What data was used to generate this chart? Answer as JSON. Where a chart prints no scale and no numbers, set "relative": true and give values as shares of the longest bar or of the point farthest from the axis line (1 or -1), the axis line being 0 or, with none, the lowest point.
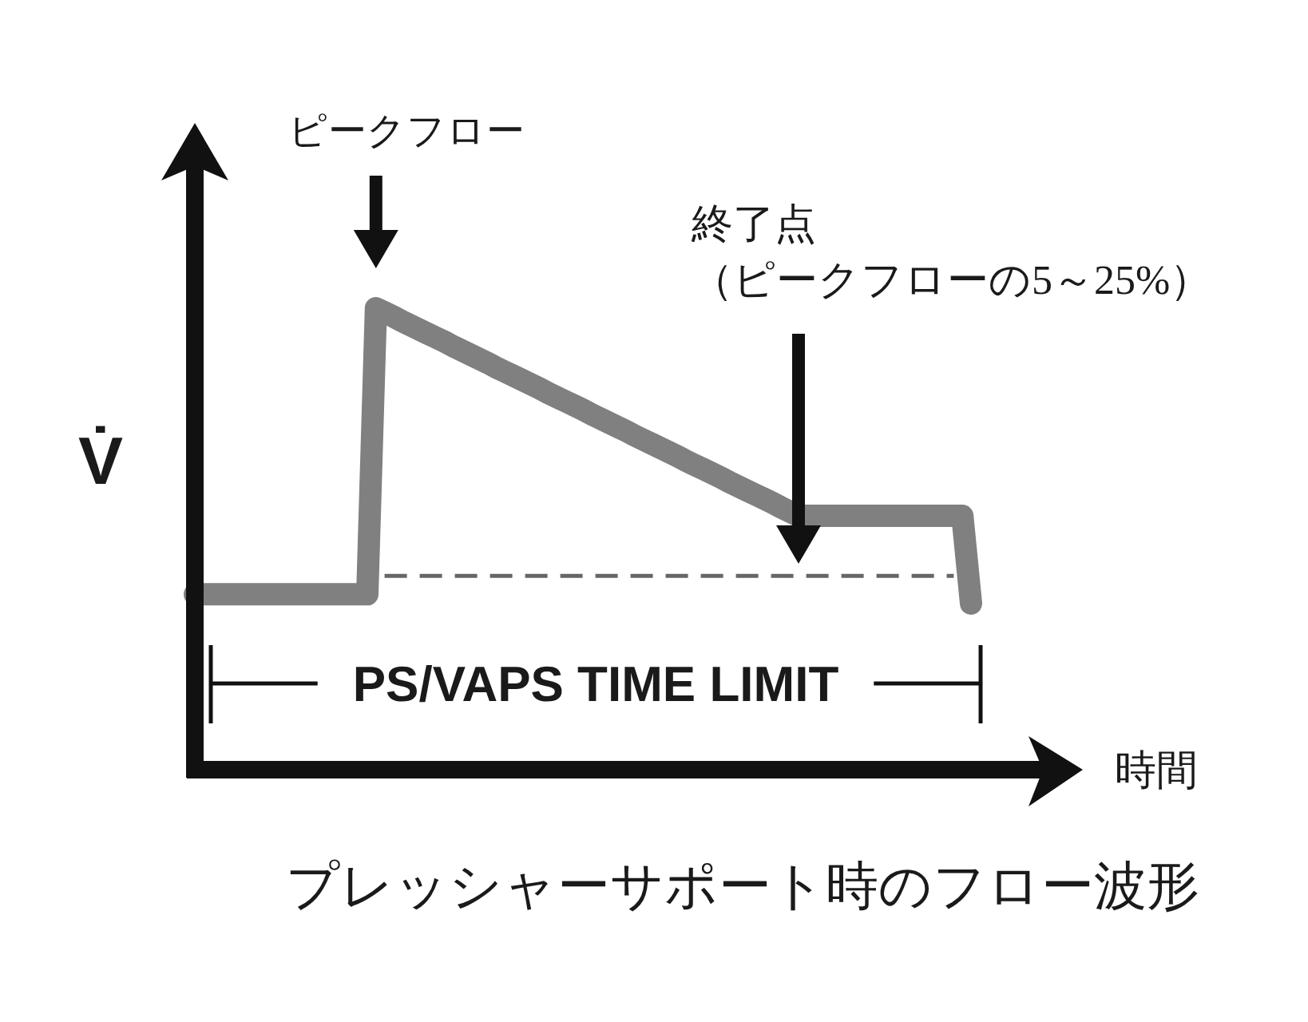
{
  "chart_data": {
    "type": "line",
    "title": "プレッシャーサポート時のフロー波形",
    "xlabel": "時間",
    "ylabel": "V̇",
    "relative": true,
    "categories": [
      null,
      null,
      null,
      null,
      null,
      null,
      null,
      null,
      null,
      null,
      null,
      null,
      null,
      null,
      null,
      null,
      null,
      null,
      null,
      null,
      null,
      null,
      null,
      null,
      null,
      null,
      null,
      null,
      null,
      null,
      null,
      null,
      null,
      null,
      null,
      null,
      null,
      null,
      null,
      null,
      null,
      null,
      null,
      null,
      null,
      null,
      null,
      null,
      null,
      null,
      null,
      null,
      null,
      null,
      null,
      null,
      null,
      null,
      null,
      null,
      null,
      null,
      null,
      null,
      null,
      null,
      null,
      null,
      null,
      null,
      null,
      null,
      null,
      null,
      null,
      null,
      null,
      null,
      null,
      null,
      null,
      null,
      null,
      null,
      null,
      null,
      null,
      null,
      null,
      null,
      null
    ],
    "series": [
      {
        "color": "#808080",
        "values": [
          0.38,
          0.38,
          0.38,
          0.38,
          0.38,
          0.38,
          0.38,
          0.38,
          0.38,
          0.38,
          0.38,
          0.38,
          0.38,
          0.38,
          0.38,
          0.38,
          0.38,
          0.38,
          0.38,
          0.38,
          0.38,
          1.0,
          0.991,
          0.982,
          0.972,
          0.963,
          0.954,
          0.945,
          0.936,
          0.927,
          0.917,
          0.908,
          0.899,
          0.89,
          0.881,
          0.871,
          0.862,
          0.853,
          0.844,
          0.835,
          0.826,
          0.816,
          0.807,
          0.798,
          0.789,
          0.78,
          0.77,
          0.761,
          0.752,
          0.743,
          0.734,
          0.724,
          0.715,
          0.706,
          0.697,
          0.688,
          0.679,
          0.669,
          0.66,
          0.651,
          0.642,
          0.633,
          0.623,
          0.614,
          0.605,
          0.596,
          0.587,
          0.578,
          0.568,
          0.559,
          0.55,
          0.55,
          0.55,
          0.55,
          0.55,
          0.55,
          0.55,
          0.55,
          0.55,
          0.55,
          0.55,
          0.55,
          0.55,
          0.55,
          0.55,
          0.55,
          0.55,
          0.55,
          0.55,
          0.55,
          0.36
        ]
      },
      {
        "color": "#666666",
        "line_style": "dashed",
        "values": [
          null,
          null,
          null,
          null,
          null,
          null,
          null,
          null,
          null,
          null,
          null,
          null,
          null,
          null,
          null,
          null,
          null,
          null,
          null,
          null,
          null,
          null,
          0.42,
          0.42,
          0.42,
          0.42,
          0.42,
          0.42,
          0.42,
          0.42,
          0.42,
          0.42,
          0.42,
          0.42,
          0.42,
          0.42,
          0.42,
          0.42,
          0.42,
          0.42,
          0.42,
          0.42,
          0.42,
          0.42,
          0.42,
          0.42,
          0.42,
          0.42,
          0.42,
          0.42,
          0.42,
          0.42,
          0.42,
          0.42,
          0.42,
          0.42,
          0.42,
          0.42,
          0.42,
          0.42,
          0.42,
          0.42,
          0.42,
          0.42,
          0.42,
          0.42,
          0.42,
          0.42,
          0.42,
          0.42,
          0.42,
          0.42,
          0.42,
          0.42,
          0.42,
          0.42,
          0.42,
          0.42,
          0.42,
          0.42,
          0.42,
          0.42,
          0.42,
          0.42,
          0.42,
          0.42,
          0.42,
          0.42,
          0.42,
          null,
          null
        ]
      }
    ],
    "annotations": [
      "ピークフロー",
      "終了点",
      "（ピークフローの5～25%）",
      "PS/VAPS TIME LIMIT"
    ]
  }
}
